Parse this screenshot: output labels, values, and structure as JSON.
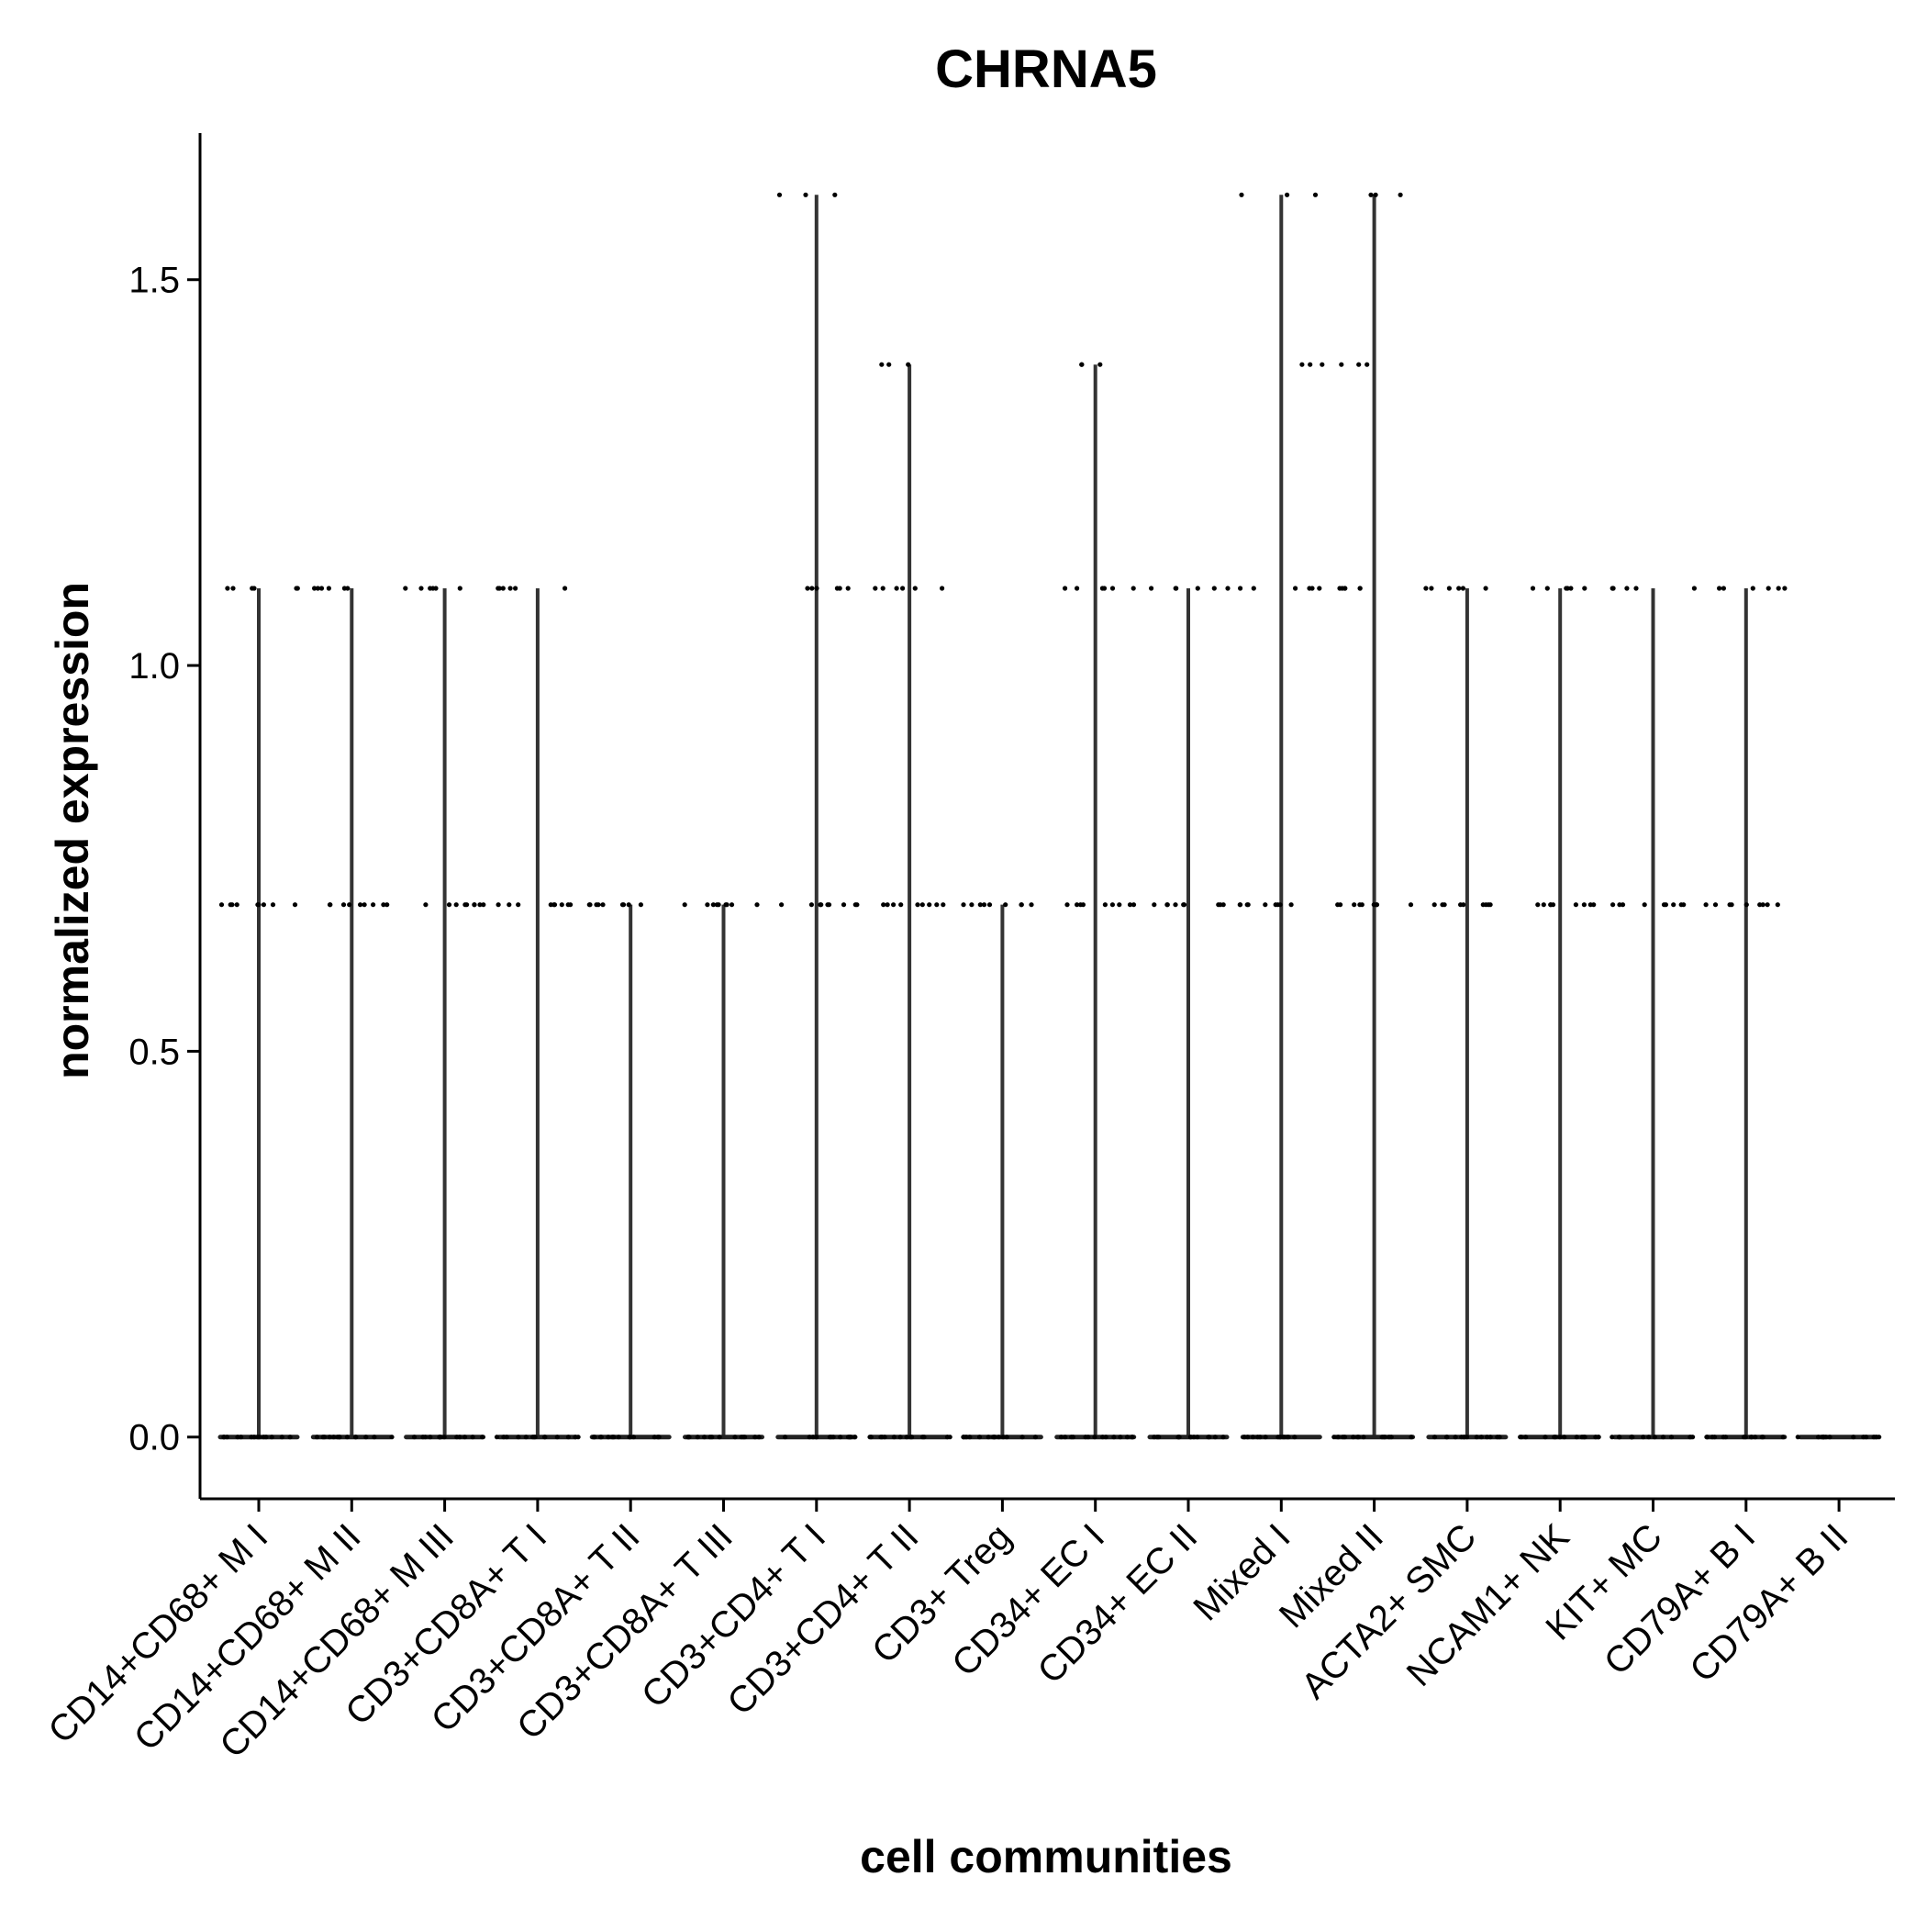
{
  "chart_data": {
    "type": "violin",
    "title": "CHRNA5",
    "xlabel": "cell communities",
    "ylabel": "normalized expression",
    "ylim": [
      -0.08,
      1.69
    ],
    "yticks": [
      "0.0",
      "0.5",
      "1.0",
      "1.5"
    ],
    "categories": [
      "CD14+CD68+ M I",
      "CD14+CD68+ M II",
      "CD14+CD68+ M III",
      "CD3+CD8A+ T I",
      "CD3+CD8A+ T II",
      "CD3+CD8A+ T III",
      "CD3+CD4+ T I",
      "CD3+CD4+ T II",
      "CD3+ Treg",
      "CD34+ EC I",
      "CD34+ EC II",
      "Mixed I",
      "Mixed II",
      "ACTA2+ SMC",
      "NCAM1+ NK",
      "KIT+ MC",
      "CD79A+ B I",
      "CD79A+ B II"
    ],
    "max_expression": [
      1.1,
      1.1,
      1.1,
      1.1,
      0.69,
      0.69,
      1.61,
      1.39,
      0.69,
      1.39,
      1.1,
      1.61,
      1.61,
      1.1,
      1.1,
      1.1,
      1.1,
      0.0
    ],
    "expression_levels": [
      [
        0.0,
        0.69,
        1.1
      ],
      [
        0.0,
        0.69,
        1.1
      ],
      [
        0.0,
        0.69,
        1.1
      ],
      [
        0.0,
        0.69,
        1.1
      ],
      [
        0.0,
        0.69
      ],
      [
        0.0,
        0.69
      ],
      [
        0.0,
        0.69,
        1.1,
        1.61
      ],
      [
        0.0,
        0.69,
        1.1,
        1.39
      ],
      [
        0.0,
        0.69
      ],
      [
        0.0,
        0.69,
        1.1,
        1.39
      ],
      [
        0.0,
        0.69,
        1.1
      ],
      [
        0.0,
        0.69,
        1.1,
        1.39,
        1.61
      ],
      [
        0.0,
        0.69,
        1.1,
        1.39,
        1.61
      ],
      [
        0.0,
        0.69,
        1.1
      ],
      [
        0.0,
        0.69,
        1.1
      ],
      [
        0.0,
        0.69,
        1.1
      ],
      [
        0.0,
        0.69,
        1.1
      ],
      [
        0.0
      ]
    ],
    "grid": false,
    "legend": "none"
  }
}
